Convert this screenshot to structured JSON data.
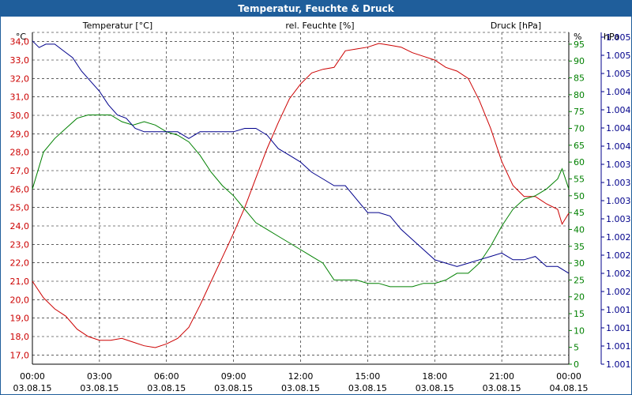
{
  "title": "Temperatur, Feuchte & Druck",
  "colors": {
    "temperature": "#cc0000",
    "humidity": "#008000",
    "pressure": "#00008b",
    "title_bar": "#1f5e9b"
  },
  "axis_labels": {
    "left_title": "Temperatur [°C]",
    "middle_title": "rel. Feuchte [%]",
    "right_title": "Druck [hPa]",
    "left_unit": "°C",
    "humidity_unit": "%",
    "pressure_unit": "hPa"
  },
  "chart_data": {
    "type": "line",
    "title": "Temperatur, Feuchte & Druck",
    "grid": true,
    "x": {
      "ticks": [
        {
          "time": "00:00",
          "date": "03.08.15"
        },
        {
          "time": "03:00",
          "date": "03.08.15"
        },
        {
          "time": "06:00",
          "date": "03.08.15"
        },
        {
          "time": "09:00",
          "date": "03.08.15"
        },
        {
          "time": "12:00",
          "date": "03.08.15"
        },
        {
          "time": "15:00",
          "date": "03.08.15"
        },
        {
          "time": "18:00",
          "date": "03.08.15"
        },
        {
          "time": "21:00",
          "date": "03.08.15"
        },
        {
          "time": "00:00",
          "date": "04.08.15"
        }
      ],
      "range_hours": [
        0,
        24
      ]
    },
    "y_left": {
      "label": "Temperatur [°C]",
      "unit": "°C",
      "range": [
        16.5,
        34.5
      ],
      "ticks": [
        "17,0",
        "18,0",
        "19,0",
        "20,0",
        "21,0",
        "22,0",
        "23,0",
        "24,0",
        "25,0",
        "26,0",
        "27,0",
        "28,0",
        "29,0",
        "30,0",
        "31,0",
        "32,0",
        "33,0",
        "34,0"
      ]
    },
    "y_humidity": {
      "label": "rel. Feuchte [%]",
      "unit": "%",
      "range": [
        0,
        98.5
      ],
      "ticks": [
        "0",
        "5",
        "10",
        "15",
        "20",
        "25",
        "30",
        "35",
        "40",
        "45",
        "50",
        "55",
        "60",
        "65",
        "70",
        "75",
        "80",
        "85",
        "90",
        "95"
      ]
    },
    "y_right": {
      "label": "Druck [hPa]",
      "unit": "hPa",
      "ticks": [
        "1.001",
        "1.001",
        "1.001",
        "1.001",
        "1.002",
        "1.002",
        "1.002",
        "1.002",
        "1.003",
        "1.003",
        "1.003",
        "1.003",
        "1.004",
        "1.004",
        "1.004",
        "1.004",
        "1.005",
        "1.005",
        "1.005"
      ]
    },
    "series": [
      {
        "name": "Temperatur [°C]",
        "axis": "left",
        "color": "#cc0000",
        "points": [
          [
            0,
            21.0
          ],
          [
            0.5,
            20.1
          ],
          [
            1,
            19.5
          ],
          [
            1.5,
            19.1
          ],
          [
            2,
            18.4
          ],
          [
            2.5,
            18.0
          ],
          [
            3,
            17.8
          ],
          [
            3.5,
            17.8
          ],
          [
            4,
            17.9
          ],
          [
            4.5,
            17.7
          ],
          [
            5,
            17.5
          ],
          [
            5.5,
            17.4
          ],
          [
            6,
            17.6
          ],
          [
            6.5,
            17.9
          ],
          [
            7,
            18.5
          ],
          [
            7.5,
            19.7
          ],
          [
            8,
            21.0
          ],
          [
            8.5,
            22.3
          ],
          [
            9,
            23.6
          ],
          [
            9.5,
            25.0
          ],
          [
            10,
            26.6
          ],
          [
            10.5,
            28.2
          ],
          [
            11,
            29.6
          ],
          [
            11.5,
            30.9
          ],
          [
            12,
            31.7
          ],
          [
            12.5,
            32.3
          ],
          [
            13,
            32.5
          ],
          [
            13.5,
            32.6
          ],
          [
            14,
            33.5
          ],
          [
            14.5,
            33.6
          ],
          [
            15,
            33.7
          ],
          [
            15.5,
            33.9
          ],
          [
            16,
            33.8
          ],
          [
            16.5,
            33.7
          ],
          [
            17,
            33.4
          ],
          [
            17.5,
            33.2
          ],
          [
            18,
            33.0
          ],
          [
            18.5,
            32.6
          ],
          [
            19,
            32.4
          ],
          [
            19.5,
            32.0
          ],
          [
            20,
            30.8
          ],
          [
            20.5,
            29.3
          ],
          [
            21,
            27.5
          ],
          [
            21.5,
            26.2
          ],
          [
            22,
            25.6
          ],
          [
            22.5,
            25.6
          ],
          [
            23,
            25.2
          ],
          [
            23.5,
            24.9
          ],
          [
            23.7,
            24.1
          ],
          [
            24,
            24.7
          ]
        ]
      },
      {
        "name": "rel. Feuchte [%]",
        "axis": "humidity",
        "color": "#008000",
        "points": [
          [
            0,
            52
          ],
          [
            0.5,
            63
          ],
          [
            1,
            67
          ],
          [
            1.5,
            70
          ],
          [
            2,
            73
          ],
          [
            2.5,
            74
          ],
          [
            3,
            74
          ],
          [
            3.5,
            74
          ],
          [
            4,
            72
          ],
          [
            4.5,
            71
          ],
          [
            5,
            72
          ],
          [
            5.5,
            71
          ],
          [
            6,
            69
          ],
          [
            6.5,
            68
          ],
          [
            7,
            66
          ],
          [
            7.5,
            62
          ],
          [
            8,
            57
          ],
          [
            8.5,
            53
          ],
          [
            9,
            50
          ],
          [
            9.5,
            46
          ],
          [
            10,
            42
          ],
          [
            10.5,
            40
          ],
          [
            11,
            38
          ],
          [
            11.5,
            36
          ],
          [
            12,
            34
          ],
          [
            12.5,
            32
          ],
          [
            13,
            30
          ],
          [
            13.5,
            25
          ],
          [
            14,
            25
          ],
          [
            14.5,
            25
          ],
          [
            15,
            24
          ],
          [
            15.5,
            24
          ],
          [
            16,
            23
          ],
          [
            16.5,
            23
          ],
          [
            17,
            23
          ],
          [
            17.5,
            24
          ],
          [
            18,
            24
          ],
          [
            18.5,
            25
          ],
          [
            19,
            27
          ],
          [
            19.5,
            27
          ],
          [
            20,
            30
          ],
          [
            20.5,
            35
          ],
          [
            21,
            41
          ],
          [
            21.5,
            46
          ],
          [
            22,
            49
          ],
          [
            22.5,
            50
          ],
          [
            23,
            52
          ],
          [
            23.5,
            55
          ],
          [
            23.7,
            58
          ],
          [
            24,
            52
          ]
        ]
      },
      {
        "name": "Druck [hPa]",
        "axis": "right",
        "color": "#00008b",
        "points": [
          [
            0,
            96
          ],
          [
            0.3,
            94
          ],
          [
            0.6,
            95
          ],
          [
            1,
            95
          ],
          [
            1.4,
            93
          ],
          [
            1.8,
            91
          ],
          [
            2.2,
            87
          ],
          [
            2.6,
            84
          ],
          [
            3,
            81
          ],
          [
            3.4,
            77
          ],
          [
            3.8,
            74
          ],
          [
            4.2,
            73
          ],
          [
            4.6,
            70
          ],
          [
            5,
            69
          ],
          [
            5.5,
            69
          ],
          [
            6,
            69
          ],
          [
            6.5,
            69
          ],
          [
            7,
            67
          ],
          [
            7.5,
            69
          ],
          [
            8,
            69
          ],
          [
            8.5,
            69
          ],
          [
            9,
            69
          ],
          [
            9.5,
            70
          ],
          [
            10,
            70
          ],
          [
            10.5,
            68
          ],
          [
            11,
            64
          ],
          [
            11.5,
            62
          ],
          [
            12,
            60
          ],
          [
            12.5,
            57
          ],
          [
            13,
            55
          ],
          [
            13.5,
            53
          ],
          [
            14,
            53
          ],
          [
            14.5,
            49
          ],
          [
            15,
            45
          ],
          [
            15.5,
            45
          ],
          [
            16,
            44
          ],
          [
            16.5,
            40
          ],
          [
            17,
            37
          ],
          [
            17.5,
            34
          ],
          [
            18,
            31
          ],
          [
            18.5,
            30
          ],
          [
            19,
            29
          ],
          [
            19.5,
            30
          ],
          [
            20,
            31
          ],
          [
            20.5,
            32
          ],
          [
            21,
            33
          ],
          [
            21.5,
            31
          ],
          [
            22,
            31
          ],
          [
            22.5,
            32
          ],
          [
            23,
            29
          ],
          [
            23.5,
            29
          ],
          [
            24,
            27
          ]
        ]
      }
    ]
  }
}
